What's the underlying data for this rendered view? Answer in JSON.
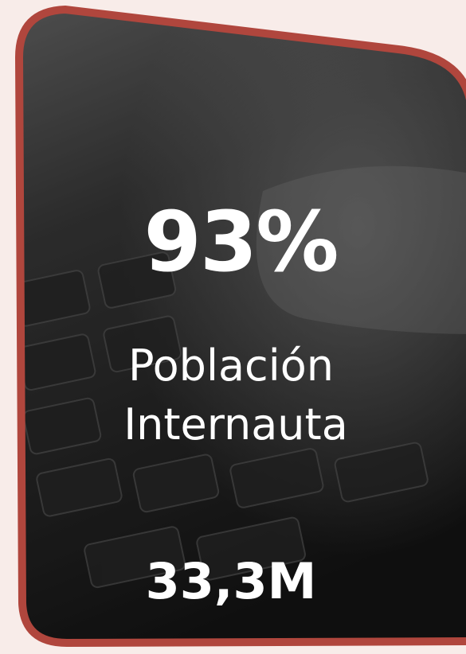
{
  "card": {
    "stat": "93%",
    "label_lines": [
      "Población",
      "Internauta"
    ],
    "count": "33,3M"
  }
}
